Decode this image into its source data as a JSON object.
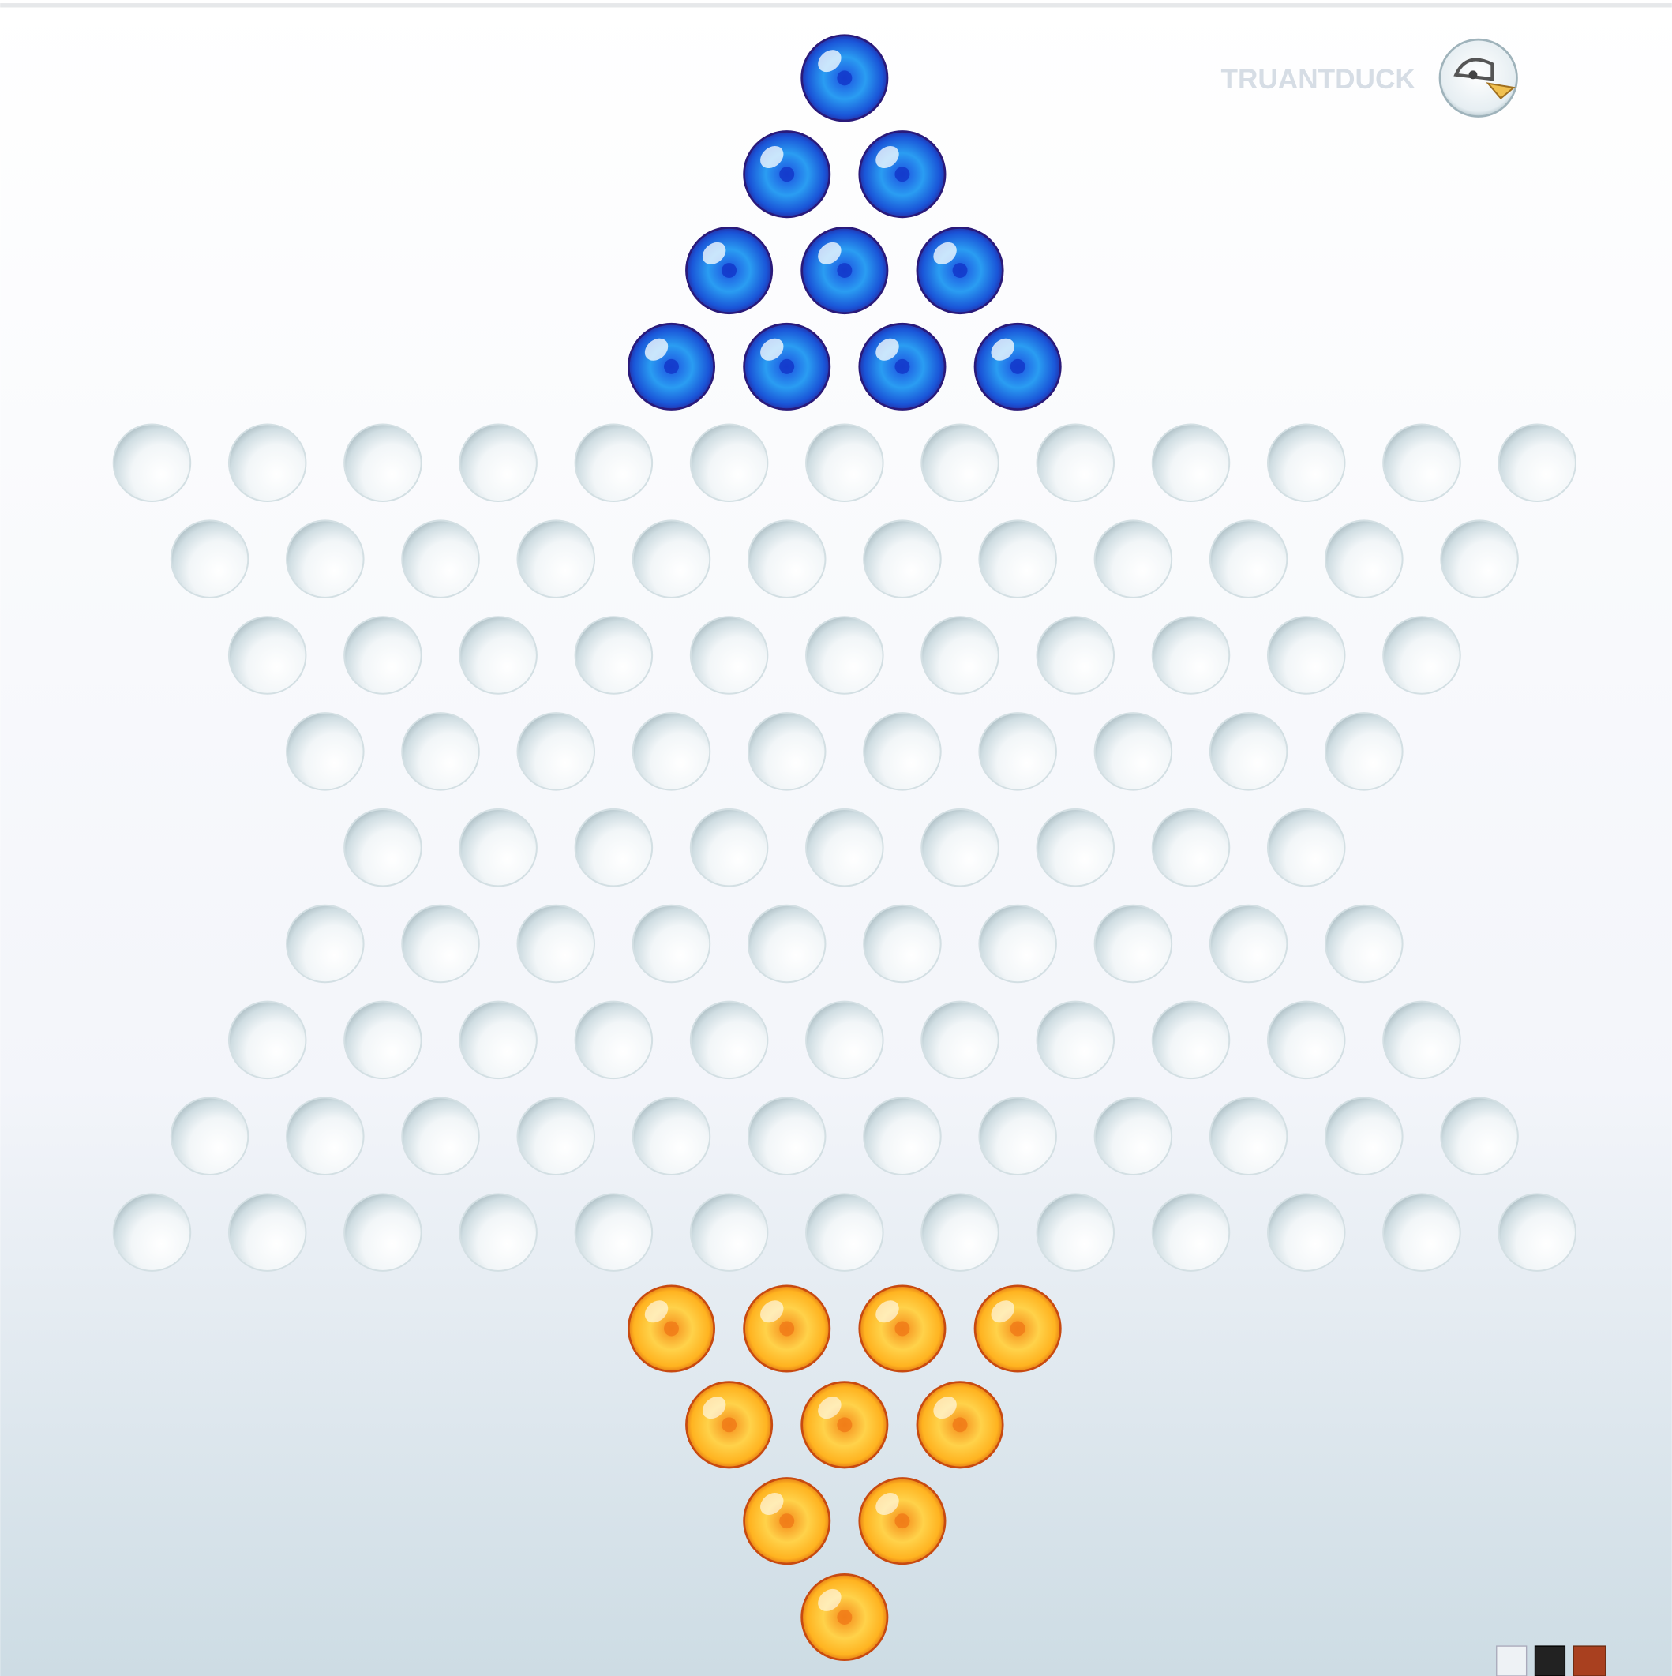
{
  "brand": {
    "name": "TRUANTDUCK"
  }
}
